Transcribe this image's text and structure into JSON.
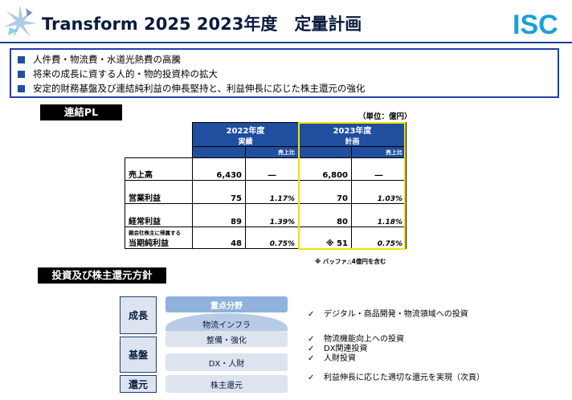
{
  "header": {
    "title": "Transform 2025 2023年度　定量計画",
    "logo_text": "ISC"
  },
  "policies": [
    "人件費・物流費・水道光熱費の高騰",
    "将来の成長に資する人的・物的投資枠の拡大",
    "安定的財務基盤及び連結純利益の伸長堅持と、利益伸長に応じた株主還元の強化"
  ],
  "pl": {
    "label": "連結PL",
    "unit": "（単位：億円）",
    "col_2022": {
      "year": "2022年度",
      "kind": "実績",
      "ratio_label": "売上比"
    },
    "col_2023": {
      "year": "2023年度",
      "kind": "計画",
      "ratio_label": "売上比"
    },
    "rows": [
      {
        "name": "売上高",
        "small": "",
        "v2022": "6,430",
        "r2022": "―",
        "v2023": "6,800",
        "r2023": "―"
      },
      {
        "name": "営業利益",
        "small": "",
        "v2022": "75",
        "r2022": "1.17%",
        "v2023": "70",
        "r2023": "1.03%"
      },
      {
        "name": "経常利益",
        "small": "",
        "v2022": "89",
        "r2022": "1.39%",
        "v2023": "80",
        "r2023": "1.18%"
      },
      {
        "name": "当期純利益",
        "small": "親会社株主に帰属する",
        "v2022": "48",
        "r2022": "0.75%",
        "v2023": "※ 51",
        "r2023": "0.75%"
      }
    ],
    "note": "※ バッファ△4億円を含む"
  },
  "policy_section": {
    "label": "投資及び株主還元方針",
    "categories": [
      "成長",
      "基盤",
      "還元"
    ],
    "pills": {
      "focus": "重点分野",
      "logistics_infra": "物流インフラ",
      "maintenance": "整備・強化",
      "dx_hr": "DX・人財",
      "shareholder_return": "株主還元"
    },
    "growth_checks": [
      "デジタル・商品開発・物流領域への投資"
    ],
    "base_checks": [
      "物流機能向上への投資",
      "DX関連投資",
      "人財投資"
    ],
    "return_checks": [
      "利益伸長に応じた適切な還元を実現（次頁）"
    ],
    "check_mark": "✓"
  },
  "colors": {
    "brand_blue": "#1f4f9e",
    "frame_yellow": "#f2e300",
    "isc_blue": "#1aa0d8"
  }
}
